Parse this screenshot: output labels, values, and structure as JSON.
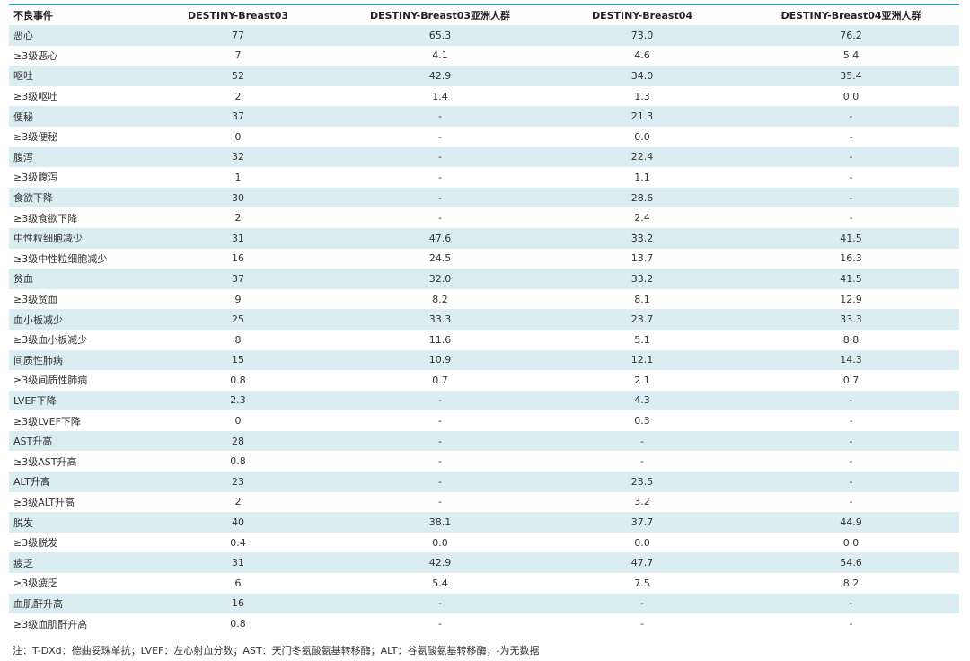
{
  "table": {
    "header": [
      "不良事件",
      "DESTINY-Breast03",
      "DESTINY-Breast03亚洲人群",
      "DESTINY-Breast04",
      "DESTINY-Breast04亚洲人群"
    ],
    "rows": [
      [
        "恶心",
        "77",
        "65.3",
        "73.0",
        "76.2"
      ],
      [
        "≥3级恶心",
        "7",
        "4.1",
        "4.6",
        "5.4"
      ],
      [
        "呕吐",
        "52",
        "42.9",
        "34.0",
        "35.4"
      ],
      [
        "≥3级呕吐",
        "2",
        "1.4",
        "1.3",
        "0.0"
      ],
      [
        "便秘",
        "37",
        "-",
        "21.3",
        "-"
      ],
      [
        "≥3级便秘",
        "0",
        "-",
        "0.0",
        "-"
      ],
      [
        "腹泻",
        "32",
        "-",
        "22.4",
        "-"
      ],
      [
        "≥3级腹泻",
        "1",
        "-",
        "1.1",
        "-"
      ],
      [
        "食欲下降",
        "30",
        "-",
        "28.6",
        "-"
      ],
      [
        "≥3级食欲下降",
        "2",
        "-",
        "2.4",
        "-"
      ],
      [
        "中性粒细胞减少",
        "31",
        "47.6",
        "33.2",
        "41.5"
      ],
      [
        "≥3级中性粒细胞减少",
        "16",
        "24.5",
        "13.7",
        "16.3"
      ],
      [
        "贫血",
        "37",
        "32.0",
        "33.2",
        "41.5"
      ],
      [
        "≥3级贫血",
        "9",
        "8.2",
        "8.1",
        "12.9"
      ],
      [
        "血小板减少",
        "25",
        "33.3",
        "23.7",
        "33.3"
      ],
      [
        "≥3级血小板减少",
        "8",
        "11.6",
        "5.1",
        "8.8"
      ],
      [
        "间质性肺病",
        "15",
        "10.9",
        "12.1",
        "14.3"
      ],
      [
        "≥3级间质性肺病",
        "0.8",
        "0.7",
        "2.1",
        "0.7"
      ],
      [
        "LVEF下降",
        "2.3",
        "-",
        "4.3",
        "-"
      ],
      [
        "≥3级LVEF下降",
        "0",
        "-",
        "0.3",
        "-"
      ],
      [
        "AST升高",
        "28",
        "-",
        "-",
        "-"
      ],
      [
        "≥3级AST升高",
        "0.8",
        "-",
        "-",
        "-"
      ],
      [
        "ALT升高",
        "23",
        "-",
        "23.5",
        "-"
      ],
      [
        "≥3级ALT升高",
        "2",
        "-",
        "3.2",
        "-"
      ],
      [
        "脱发",
        "40",
        "38.1",
        "37.7",
        "44.9"
      ],
      [
        "≥3级脱发",
        "0.4",
        "0.0",
        "0.0",
        "0.0"
      ],
      [
        "疲乏",
        "31",
        "42.9",
        "47.7",
        "54.6"
      ],
      [
        "≥3级疲乏",
        "6",
        "5.4",
        "7.5",
        "8.2"
      ],
      [
        "血肌酐升高",
        "16",
        "-",
        "-",
        "-"
      ],
      [
        "≥3级血肌酐升高",
        "0.8",
        "-",
        "-",
        "-"
      ]
    ]
  },
  "footnote": "注：T-DXd：德曲妥珠单抗；LVEF：左心射血分数；AST：天门冬氨酸氨基转移酶；ALT：谷氨酸氨基转移酶；-为无数据"
}
